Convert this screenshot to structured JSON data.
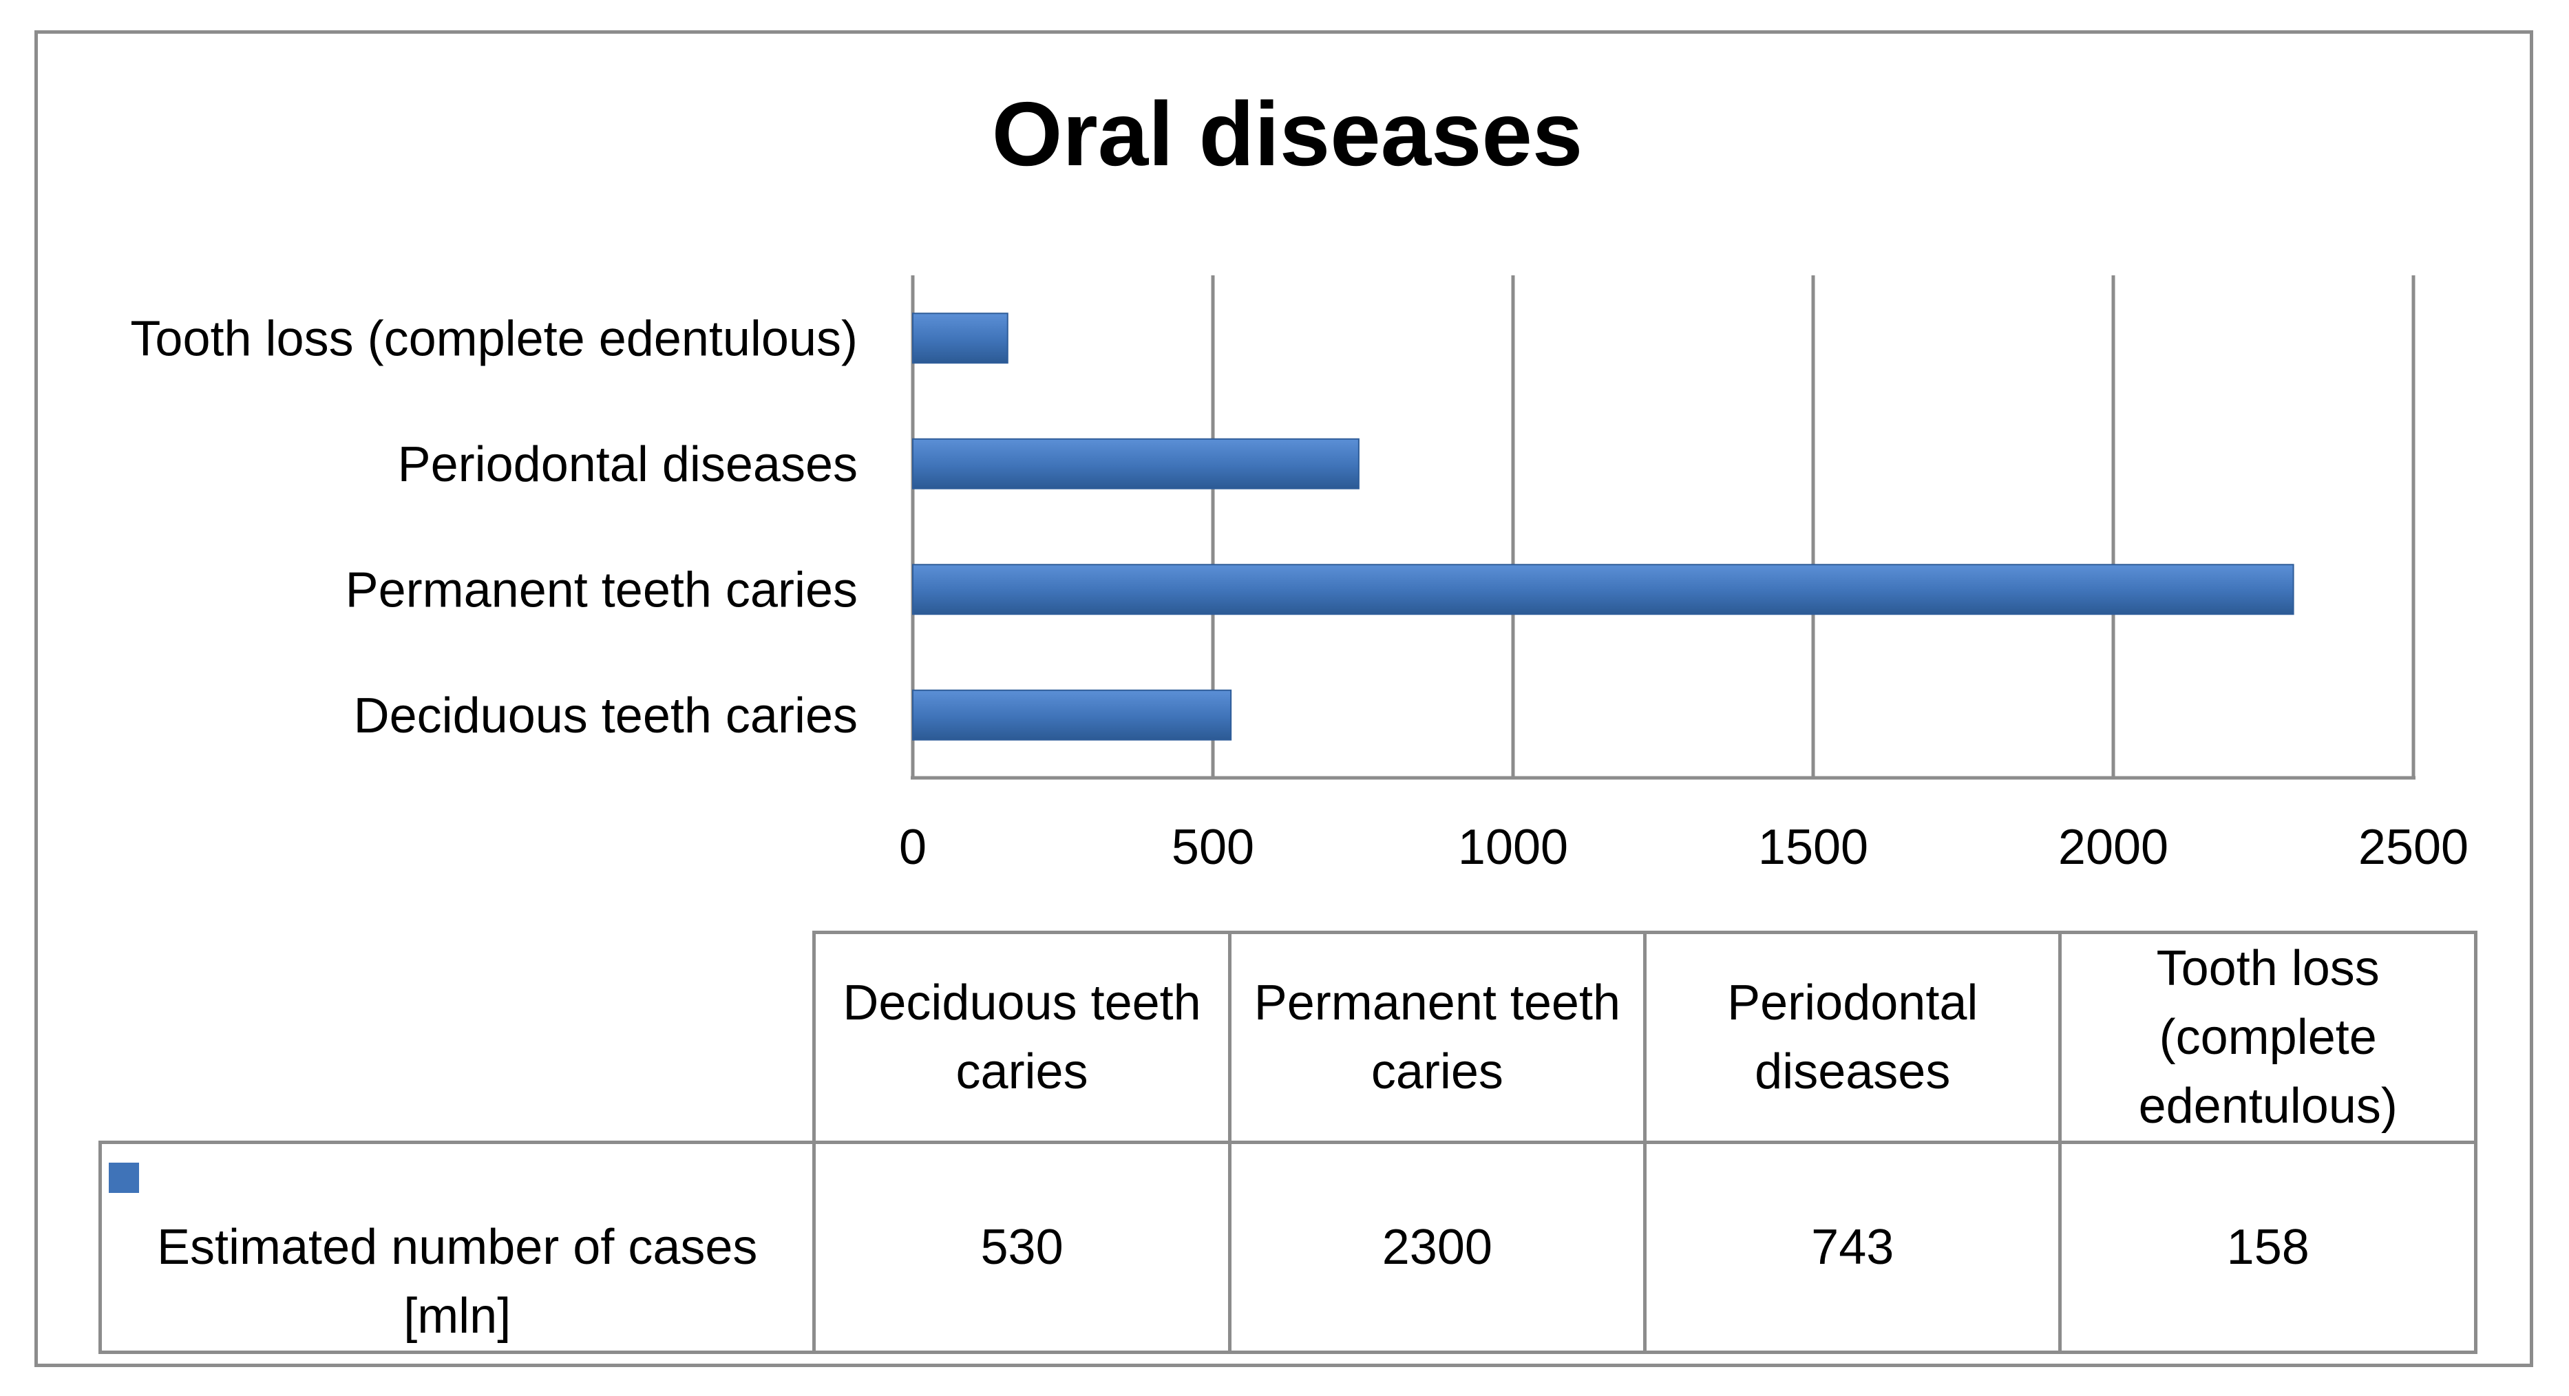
{
  "chart_data": {
    "type": "bar",
    "orientation": "horizontal",
    "title": "Oral diseases",
    "categories": [
      "Deciduous teeth caries",
      "Permanent teeth caries",
      "Periodontal diseases",
      "Tooth loss (complete edentulous)"
    ],
    "series": [
      {
        "name": "Estimated number of cases [mln]",
        "values": [
          530,
          2300,
          743,
          158
        ],
        "color": "#3f73b8"
      }
    ],
    "xlim": [
      0,
      2500
    ],
    "xticks": [
      0,
      500,
      1000,
      1500,
      2000,
      2500
    ],
    "xtick_labels": [
      "0",
      "500",
      "1000",
      "1500",
      "2000",
      "2500"
    ],
    "grid": true,
    "legend": "data-table-left",
    "data_table": {
      "headers": [
        "Deciduous teeth caries",
        "Permanent teeth caries",
        "Periodontal diseases",
        "Tooth loss (complete edentulous)"
      ],
      "row_label": "Estimated number of cases [mln]",
      "cells": [
        "530",
        "2300",
        "743",
        "158"
      ]
    }
  },
  "colors": {
    "bar": "#3f73b8",
    "bar_dark": "#2f5d99",
    "grid": "#8c8c8c"
  }
}
